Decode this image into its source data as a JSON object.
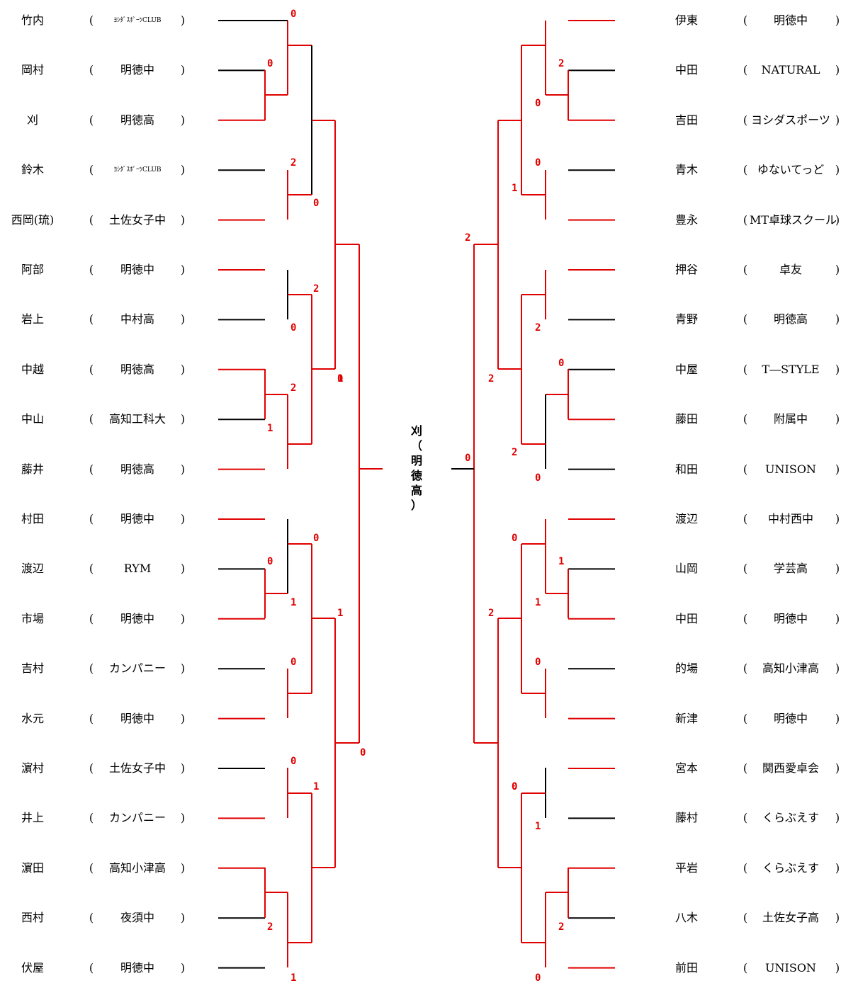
{
  "left_players": [
    {
      "name": "竹内",
      "affiliation": "ﾖｼﾀﾞｽﾎﾟｰﾂCLUB"
    },
    {
      "name": "岡村",
      "affiliation": "明徳中"
    },
    {
      "name": "刈",
      "affiliation": "明徳高"
    },
    {
      "name": "鈴木",
      "affiliation": "ﾖｼﾀﾞｽﾎﾟｰﾂCLUB"
    },
    {
      "name": "西岡(琉)",
      "affiliation": "土佐女子中"
    },
    {
      "name": "阿部",
      "affiliation": "明徳中"
    },
    {
      "name": "岩上",
      "affiliation": "中村高"
    },
    {
      "name": "中越",
      "affiliation": "明徳高"
    },
    {
      "name": "中山",
      "affiliation": "高知工科大"
    },
    {
      "name": "藤井",
      "affiliation": "明徳高"
    },
    {
      "name": "村田",
      "affiliation": "明徳中"
    },
    {
      "name": "渡辺",
      "affiliation": "RYM"
    },
    {
      "name": "市場",
      "affiliation": "明徳中"
    },
    {
      "name": "吉村",
      "affiliation": "カンパニー"
    },
    {
      "name": "水元",
      "affiliation": "明徳中"
    },
    {
      "name": "濵村",
      "affiliation": "土佐女子中"
    },
    {
      "name": "井上",
      "affiliation": "カンパニー"
    },
    {
      "name": "濵田",
      "affiliation": "高知小津高"
    },
    {
      "name": "西村",
      "affiliation": "夜須中"
    },
    {
      "name": "伏屋",
      "affiliation": "明徳中"
    }
  ],
  "right_players": [
    {
      "name": "伊東",
      "affiliation": "明徳中"
    },
    {
      "name": "中田",
      "affiliation": "NATURAL"
    },
    {
      "name": "吉田",
      "affiliation": "ヨシダスポーツ"
    },
    {
      "name": "青木",
      "affiliation": "ゆないてっど"
    },
    {
      "name": "豊永",
      "affiliation": "MT卓球スクール"
    },
    {
      "name": "押谷",
      "affiliation": "卓友"
    },
    {
      "name": "青野",
      "affiliation": "明徳高"
    },
    {
      "name": "中屋",
      "affiliation": "T―STYLE"
    },
    {
      "name": "藤田",
      "affiliation": "附属中"
    },
    {
      "name": "和田",
      "affiliation": "UNISON"
    },
    {
      "name": "渡辺",
      "affiliation": "中村西中"
    },
    {
      "name": "山岡",
      "affiliation": "学芸高"
    },
    {
      "name": "中田",
      "affiliation": "明徳中"
    },
    {
      "name": "的場",
      "affiliation": "高知小津高"
    },
    {
      "name": "新津",
      "affiliation": "明徳中"
    },
    {
      "name": "宮本",
      "affiliation": "関西愛卓会"
    },
    {
      "name": "藤村",
      "affiliation": "くらぶえす"
    },
    {
      "name": "平岩",
      "affiliation": "くらぶえす"
    },
    {
      "name": "八木",
      "affiliation": "土佐女子高"
    },
    {
      "name": "前田",
      "affiliation": "UNISON"
    }
  ],
  "paren_open": "(",
  "paren_close": ")",
  "champion": {
    "text": "刈（明徳高）"
  },
  "scores_left": [
    "0",
    "0",
    "2",
    "0",
    "2",
    "0",
    "2",
    "1",
    "0",
    "0",
    "0",
    "1",
    "0",
    "1",
    "0",
    "1",
    "2",
    "1",
    "0",
    "1"
  ],
  "scores_right": [
    "2",
    "0",
    "0",
    "1",
    "2",
    "2",
    "0",
    "2",
    "2",
    "0",
    "0",
    "0",
    "1",
    "1",
    "2",
    "0",
    "0",
    "1",
    "2",
    "0",
    "0"
  ],
  "colors": {
    "win_line": "#e00000",
    "line": "#000000",
    "score": "#e00000"
  }
}
